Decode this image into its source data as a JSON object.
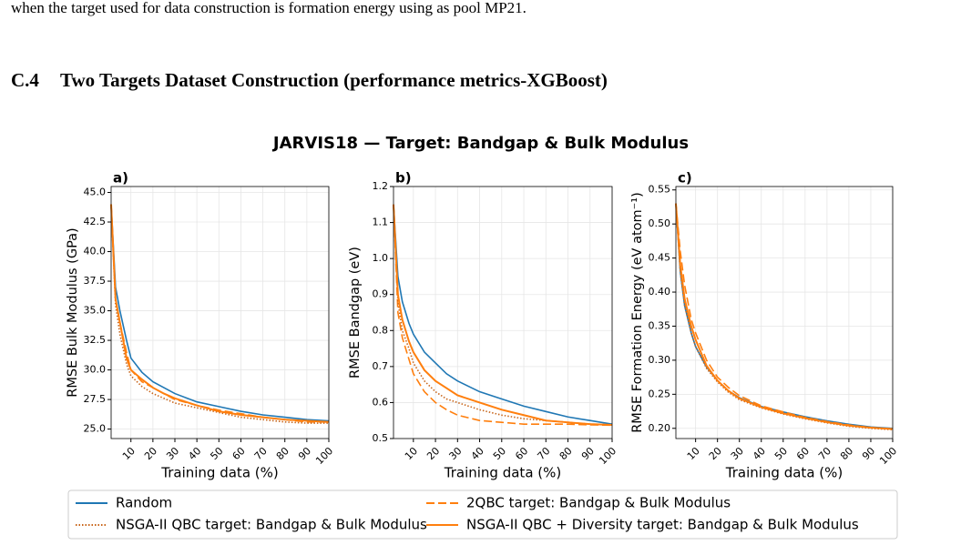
{
  "text_line": "when the target used for data construction is formation energy using as pool MP21.",
  "section": {
    "number": "C.4",
    "title": "Two Targets Dataset Construction (performance metrics-XGBoost)"
  },
  "figure": {
    "title": "JARVIS18 — Target: Bandgap & Bulk Modulus",
    "legend": [
      {
        "name": "Random",
        "color": "#1f77b4",
        "style": "solid"
      },
      {
        "name": "2QBC target: Bandgap & Bulk Modulus",
        "color": "#ff7f0e",
        "style": "dashed"
      },
      {
        "name": "NSGA-II QBC target: Bandgap & Bulk Modulus",
        "color": "#c8651a",
        "style": "dotted"
      },
      {
        "name": "NSGA-II QBC + Diversity target: Bandgap & Bulk Modulus",
        "color": "#ff7f0e",
        "style": "solid"
      }
    ]
  },
  "chart_data": [
    {
      "type": "line",
      "panel": "a)",
      "xlabel": "Training data (%)",
      "ylabel": "RMSE Bulk Modulus (GPa)",
      "grid": true,
      "x": [
        1,
        3,
        5,
        8,
        10,
        15,
        20,
        25,
        30,
        40,
        50,
        60,
        70,
        80,
        90,
        100
      ],
      "xlim": [
        1,
        100
      ],
      "xticks": [
        10,
        20,
        30,
        40,
        50,
        60,
        70,
        80,
        90,
        100
      ],
      "ylim": [
        24.2,
        45.5
      ],
      "yticks": [
        {
          "value": 25,
          "label": "25.0"
        },
        27.5,
        {
          "value": 30,
          "label": "30.0"
        },
        32.5,
        {
          "value": 35,
          "label": "35.0"
        },
        37.5,
        {
          "value": 40,
          "label": "40.0"
        },
        42.5,
        {
          "value": 45,
          "label": "45.0"
        }
      ],
      "series": [
        {
          "values": [
            44,
            37,
            35,
            32.5,
            31,
            29.8,
            29,
            28.5,
            28,
            27.3,
            26.9,
            26.5,
            26.2,
            26,
            25.8,
            25.7
          ]
        },
        {
          "values": [
            44,
            36,
            34,
            31.5,
            30,
            29,
            28.5,
            28,
            27.5,
            27,
            26.6,
            26.3,
            26,
            25.8,
            25.6,
            25.6
          ]
        },
        {
          "values": [
            44,
            35.5,
            33,
            30.5,
            29.5,
            28.6,
            28,
            27.6,
            27.2,
            26.8,
            26.4,
            26,
            25.8,
            25.6,
            25.5,
            25.5
          ]
        },
        {
          "values": [
            44,
            36,
            34,
            31,
            30,
            29.2,
            28.5,
            28,
            27.6,
            27,
            26.5,
            26.2,
            26,
            25.8,
            25.7,
            25.6
          ]
        }
      ]
    },
    {
      "type": "line",
      "panel": "b)",
      "xlabel": "Training data (%)",
      "ylabel": "RMSE Bandgap (eV)",
      "grid": true,
      "x": [
        1,
        3,
        5,
        8,
        10,
        15,
        20,
        25,
        30,
        40,
        50,
        60,
        70,
        80,
        90,
        100
      ],
      "xlim": [
        1,
        100
      ],
      "xticks": [
        10,
        20,
        30,
        40,
        50,
        60,
        70,
        80,
        90,
        100
      ],
      "ylim": [
        0.5,
        1.2
      ],
      "yticks": [
        0.5,
        0.6,
        0.7,
        0.8,
        0.9,
        {
          "value": 1,
          "label": "1.0"
        },
        1.1,
        1.2
      ],
      "series": [
        {
          "values": [
            1.15,
            0.95,
            0.88,
            0.82,
            0.79,
            0.74,
            0.71,
            0.68,
            0.66,
            0.63,
            0.61,
            0.59,
            0.575,
            0.56,
            0.55,
            0.54
          ]
        },
        {
          "values": [
            1.15,
            0.85,
            0.78,
            0.72,
            0.68,
            0.63,
            0.6,
            0.58,
            0.565,
            0.55,
            0.545,
            0.54,
            0.54,
            0.54,
            0.538,
            0.537
          ]
        },
        {
          "values": [
            1.15,
            0.88,
            0.8,
            0.75,
            0.71,
            0.66,
            0.63,
            0.61,
            0.6,
            0.58,
            0.565,
            0.555,
            0.55,
            0.545,
            0.54,
            0.538
          ]
        },
        {
          "values": [
            1.15,
            0.9,
            0.83,
            0.77,
            0.74,
            0.69,
            0.66,
            0.64,
            0.62,
            0.6,
            0.58,
            0.565,
            0.55,
            0.545,
            0.54,
            0.538
          ]
        }
      ]
    },
    {
      "type": "line",
      "panel": "c)",
      "xlabel": "Training data (%)",
      "ylabel": "RMSE Formation Energy (eV atom⁻¹)",
      "grid": true,
      "x": [
        1,
        3,
        5,
        8,
        10,
        15,
        20,
        25,
        30,
        40,
        50,
        60,
        70,
        80,
        90,
        100
      ],
      "xlim": [
        1,
        100
      ],
      "xticks": [
        10,
        20,
        30,
        40,
        50,
        60,
        70,
        80,
        90,
        100
      ],
      "ylim": [
        0.185,
        0.555
      ],
      "yticks": [
        {
          "value": 0.2,
          "label": "0.20"
        },
        0.25,
        {
          "value": 0.3,
          "label": "0.30"
        },
        0.35,
        {
          "value": 0.4,
          "label": "0.40"
        },
        0.45,
        {
          "value": 0.5,
          "label": "0.50"
        },
        0.55
      ],
      "series": [
        {
          "values": [
            0.53,
            0.43,
            0.38,
            0.34,
            0.32,
            0.29,
            0.27,
            0.255,
            0.245,
            0.232,
            0.224,
            0.217,
            0.211,
            0.206,
            0.202,
            0.2
          ]
        },
        {
          "values": [
            0.53,
            0.46,
            0.41,
            0.36,
            0.34,
            0.3,
            0.275,
            0.26,
            0.248,
            0.233,
            0.224,
            0.216,
            0.21,
            0.205,
            0.201,
            0.199
          ]
        },
        {
          "values": [
            0.53,
            0.43,
            0.38,
            0.34,
            0.32,
            0.288,
            0.268,
            0.253,
            0.242,
            0.23,
            0.221,
            0.214,
            0.208,
            0.203,
            0.2,
            0.198
          ]
        },
        {
          "values": [
            0.53,
            0.44,
            0.39,
            0.35,
            0.33,
            0.292,
            0.27,
            0.255,
            0.244,
            0.231,
            0.222,
            0.215,
            0.209,
            0.204,
            0.201,
            0.199
          ]
        }
      ]
    }
  ]
}
